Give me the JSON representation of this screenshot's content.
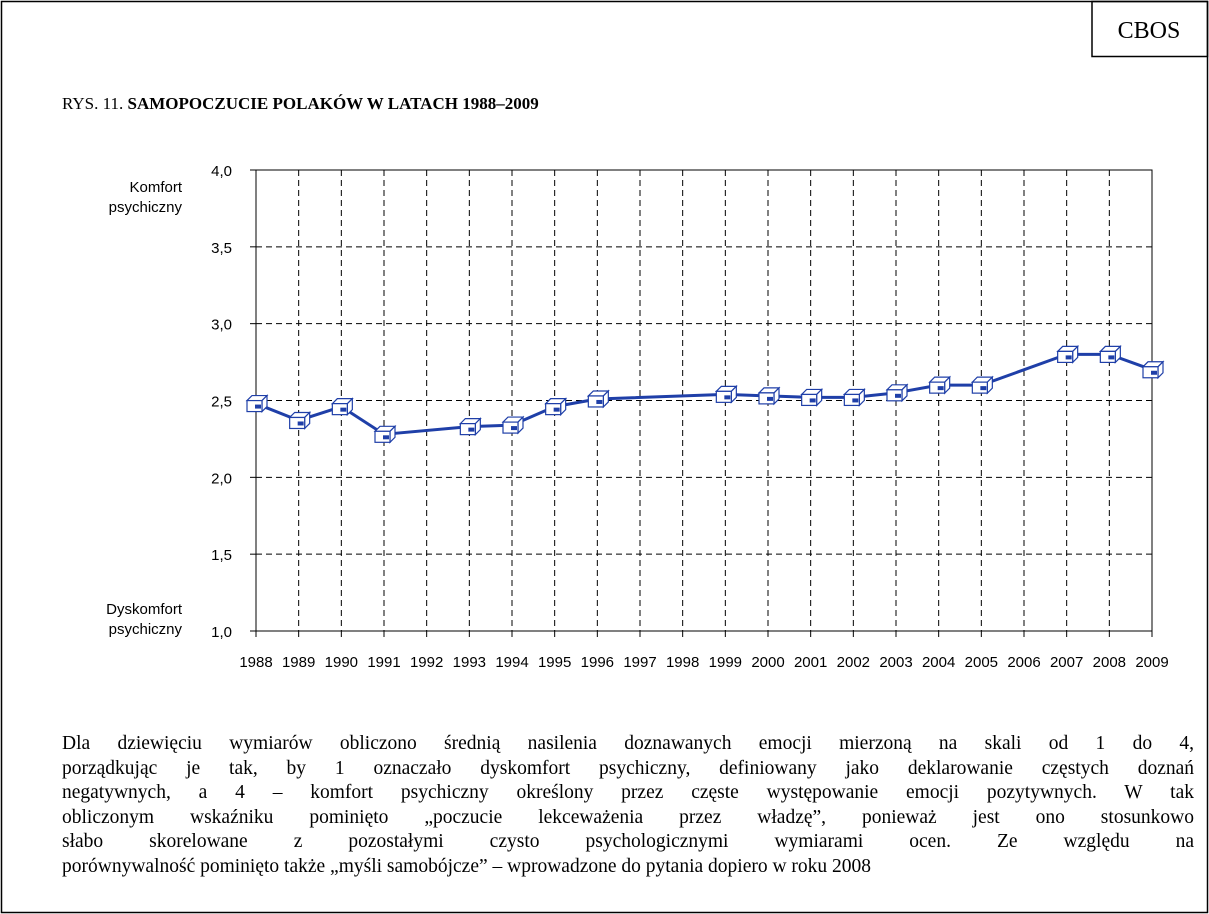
{
  "corner_label": "CBOS",
  "chart_data": {
    "type": "line",
    "title_prefix": "RYS. 11.",
    "title": "SAMOPOCZUCIE POLAKÓW W LATACH 1988–2009",
    "y_label_top": [
      "Komfort",
      "psychiczny"
    ],
    "y_label_bottom": [
      "Dyskomfort",
      "psychiczny"
    ],
    "x": [
      1988,
      1989,
      1990,
      1991,
      1993,
      1994,
      1995,
      1996,
      1999,
      2000,
      2001,
      2002,
      2003,
      2004,
      2005,
      2007,
      2008,
      2009
    ],
    "series": [
      {
        "color": "#1f3fa8",
        "values": [
          2.48,
          2.37,
          2.46,
          2.28,
          2.33,
          2.34,
          2.46,
          2.51,
          2.54,
          2.53,
          2.52,
          2.52,
          2.55,
          2.6,
          2.6,
          2.8,
          2.8,
          2.7
        ]
      }
    ],
    "xlim": [
      1988,
      2009
    ],
    "xticks": [
      1988,
      1989,
      1990,
      1991,
      1992,
      1993,
      1994,
      1995,
      1996,
      1997,
      1998,
      1999,
      2000,
      2001,
      2002,
      2003,
      2004,
      2005,
      2006,
      2007,
      2008,
      2009
    ],
    "ylim": [
      1,
      4
    ],
    "yticks": [
      {
        "value": 1,
        "label": "1,0"
      },
      {
        "value": 1.5,
        "label": "1,5"
      },
      {
        "value": 2,
        "label": "2,0"
      },
      {
        "value": 2.5,
        "label": "2,5"
      },
      {
        "value": 3,
        "label": "3,0"
      },
      {
        "value": 3.5,
        "label": "3,5"
      },
      {
        "value": 4,
        "label": "4,0"
      }
    ],
    "grid": true
  },
  "note": [
    "Dla dziewięciu wymiarów obliczono średnią nasilenia doznawanych emocji mierzoną na skali od 1 do 4,",
    "porządkując je tak, by 1 oznaczało dyskomfort psychiczny, definiowany jako deklarowanie częstych doznań",
    "negatywnych, a 4 – komfort psychiczny określony przez częste występowanie emocji pozytywnych. W tak",
    "obliczonym wskaźniku pominięto „poczucie lekceważenia przez władzę”, ponieważ jest ono stosunkowo",
    "słabo skorelowane z pozostałymi czysto psychologicznymi wymiarami ocen. Ze względu na",
    "porównywalność pominięto także „myśli samobójcze” – wprowadzone do pytania dopiero w roku 2008"
  ]
}
